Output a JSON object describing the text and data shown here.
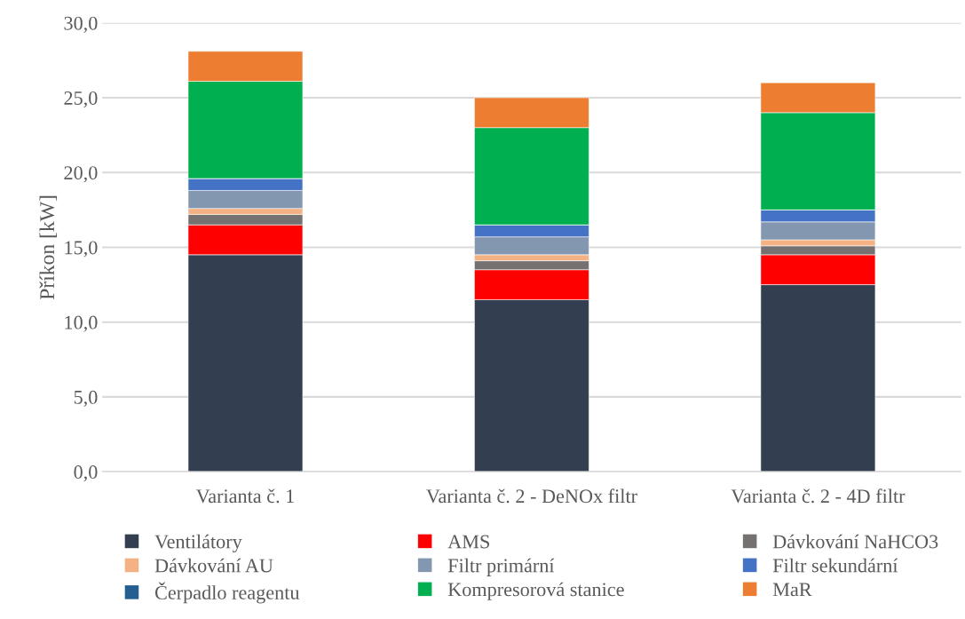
{
  "chart_data": {
    "type": "bar",
    "stacked": true,
    "ylabel": "Příkon [kW]",
    "categories": [
      "Varianta č. 1",
      "Varianta č. 2 - DeNOx filtr",
      "Varianta č. 2 - 4D filtr"
    ],
    "series": [
      {
        "name": "Ventilátory",
        "color": "#333f50",
        "values": [
          14.5,
          11.5,
          12.5
        ]
      },
      {
        "name": "AMS",
        "color": "#ff0000",
        "values": [
          2.0,
          2.0,
          2.0
        ]
      },
      {
        "name": "Dávkování NaHCO3",
        "color": "#767171",
        "values": [
          0.7,
          0.6,
          0.6
        ]
      },
      {
        "name": "Dávkování AU",
        "color": "#f4b183",
        "values": [
          0.4,
          0.4,
          0.4
        ]
      },
      {
        "name": "Filtr primární",
        "color": "#8497b0",
        "values": [
          1.2,
          1.2,
          1.2
        ]
      },
      {
        "name": "Filtr sekundární",
        "color": "#4472c4",
        "values": [
          0.8,
          0.8,
          0.8
        ]
      },
      {
        "name": "Čerpadlo reagentu",
        "color": "#255e91",
        "values": [
          0,
          0,
          0
        ]
      },
      {
        "name": "Kompresorová stanice",
        "color": "#00b050",
        "values": [
          6.5,
          6.5,
          6.5
        ]
      },
      {
        "name": "MaR",
        "color": "#ed7d31",
        "values": [
          2.0,
          2.0,
          2.0
        ]
      }
    ],
    "ylim": [
      0,
      30
    ],
    "yticks": [
      {
        "value": 0,
        "label": "0,0"
      },
      {
        "value": 5,
        "label": "5,0"
      },
      {
        "value": 10,
        "label": "10,0"
      },
      {
        "value": 15,
        "label": "15,0"
      },
      {
        "value": 20,
        "label": "20,0"
      },
      {
        "value": 25,
        "label": "25,0"
      },
      {
        "value": 30,
        "label": "30,0"
      }
    ],
    "grid": "y",
    "legend": "bottom"
  }
}
